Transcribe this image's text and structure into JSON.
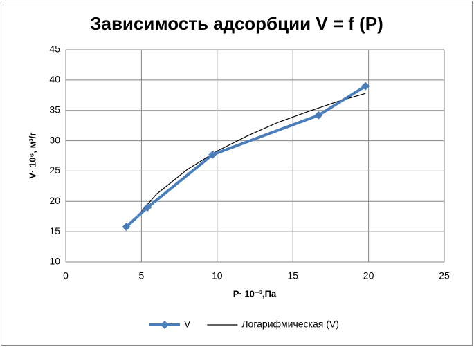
{
  "chart_data": {
    "type": "scatter",
    "title": "Зависимость адсорбции  V = f (P)",
    "x_label": "P· 10⁻³,Па",
    "y_label": "V· 10⁶, м³/г",
    "xlim": [
      0,
      25
    ],
    "xticks": [
      0,
      5,
      10,
      15,
      20,
      25
    ],
    "ylim": [
      10,
      45
    ],
    "yticks": [
      10,
      15,
      20,
      25,
      30,
      35,
      40,
      45
    ],
    "grid": true,
    "legend": "bottom",
    "series": [
      {
        "name": "V",
        "color": "#4a7ebb",
        "marker": "diamond",
        "x": [
          4,
          5.4,
          9.7,
          16.7,
          19.8
        ],
        "values": [
          15.8,
          19,
          27.7,
          34.2,
          39
        ]
      },
      {
        "name": "Логарифмическая (V)",
        "color": "#000000",
        "marker": "none",
        "x": [
          4,
          6,
          8,
          10,
          12,
          14,
          16,
          18,
          19.8
        ],
        "values": [
          15.5,
          21.2,
          25.2,
          28.3,
          30.8,
          33.0,
          34.8,
          36.5,
          37.8
        ]
      }
    ]
  }
}
